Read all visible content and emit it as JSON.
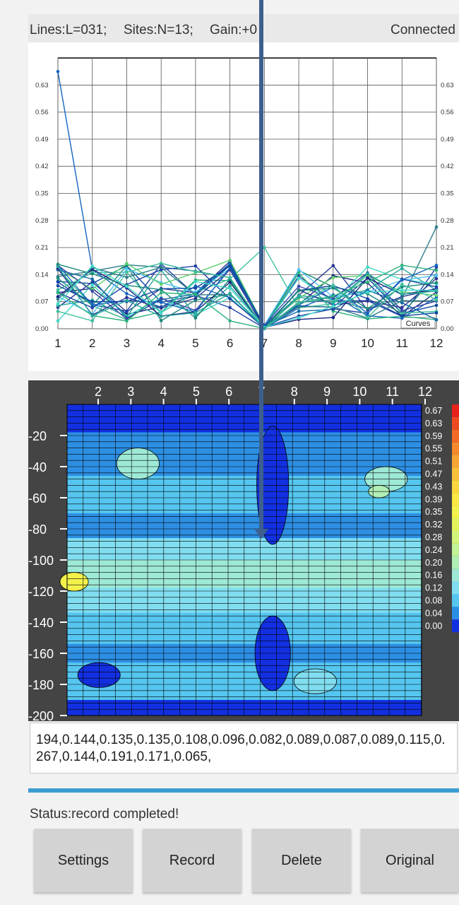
{
  "header": {
    "lines": "Lines:L=031;",
    "sites": "Sites:N=13;",
    "gain": "Gain:+0",
    "connection": "Connected"
  },
  "curves_chart": {
    "y_ticks": [
      "0.00",
      "0.07",
      "0.14",
      "0.21",
      "0.28",
      "0.35",
      "0.42",
      "0.49",
      "0.56",
      "0.63"
    ],
    "x_ticks": [
      "1",
      "2",
      "3",
      "4",
      "5",
      "6",
      "7",
      "8",
      "9",
      "10",
      "11",
      "12"
    ],
    "legend_label": "Curves"
  },
  "depth_map": {
    "x_ticks": [
      "2",
      "3",
      "4",
      "5",
      "6",
      "7",
      "8",
      "9",
      "10",
      "11",
      "12"
    ],
    "depth_ticks": [
      "-20",
      "-40",
      "-60",
      "-80",
      "-100",
      "-120",
      "-140",
      "-160",
      "-180",
      "-200"
    ],
    "scale_labels": [
      "0.67",
      "0.63",
      "0.59",
      "0.55",
      "0.51",
      "0.47",
      "0.43",
      "0.39",
      "0.35",
      "0.32",
      "0.28",
      "0.24",
      "0.20",
      "0.16",
      "0.12",
      "0.08",
      "0.04",
      "0.00"
    ],
    "scale_colors": [
      "#e8211b",
      "#ef4a1f",
      "#f26a26",
      "#f5892d",
      "#f8a533",
      "#f9c13a",
      "#fbd73f",
      "#fbe842",
      "#f3f24a",
      "#e4f35d",
      "#d3f27a",
      "#c1f296",
      "#b0efb5",
      "#9ee9d6",
      "#80def0",
      "#55c6ef",
      "#2d8fe3",
      "#1230e0"
    ]
  },
  "data_readout": "194,0.144,0.135,0.135,0.108,0.096,0.082,0.089,0.087,0.089,0.115,0.267,0.144,0.191,0.171,0.065,",
  "status_text": "Status:record completed!",
  "buttons": {
    "settings": "Settings",
    "record": "Record",
    "delete": "Delete",
    "original": "Original"
  }
}
